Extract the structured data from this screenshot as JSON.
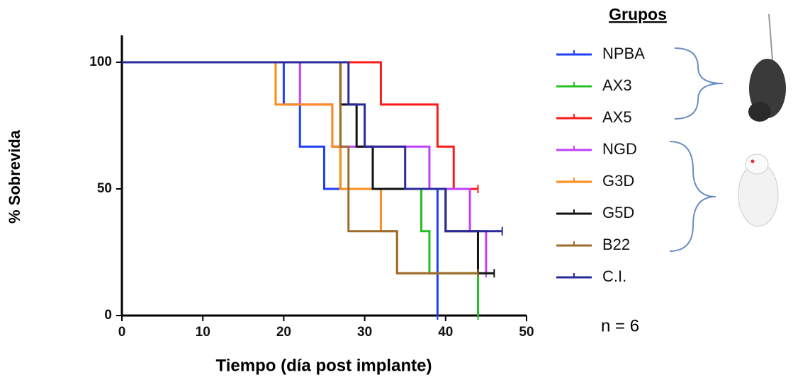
{
  "chart_data": {
    "type": "step",
    "ylabel": "% Sobrevida",
    "xlabel": "Tiempo (día post implante)",
    "legend_title": "Grupos",
    "annotation": "n = 6",
    "xlim": [
      0,
      50
    ],
    "xticks": [
      0,
      10,
      20,
      30,
      40,
      50
    ],
    "ylim": [
      0,
      100
    ],
    "yticks": [
      0,
      50,
      100
    ],
    "series": [
      {
        "name": "NPBA",
        "color": "#1f3fff",
        "x": [
          0,
          20,
          22,
          25,
          39
        ],
        "values": [
          100,
          83.3,
          66.7,
          50,
          0
        ]
      },
      {
        "name": "AX3",
        "color": "#22c022",
        "x": [
          0,
          27,
          37,
          38,
          44
        ],
        "values": [
          100,
          50,
          33.3,
          16.7,
          0
        ]
      },
      {
        "name": "AX5",
        "color": "#ff1a1a",
        "x": [
          0,
          32,
          39,
          41,
          44
        ],
        "values": [
          100,
          83.3,
          66.7,
          50,
          50
        ]
      },
      {
        "name": "NGD",
        "color": "#c040ff",
        "x": [
          0,
          22,
          26,
          38,
          43,
          45
        ],
        "values": [
          100,
          83.3,
          66.7,
          50,
          33.3,
          16.7
        ]
      },
      {
        "name": "G3D",
        "color": "#ff8c1a",
        "x": [
          0,
          19,
          26,
          27,
          32,
          34,
          44
        ],
        "values": [
          100,
          83.3,
          66.7,
          50,
          33.3,
          16.7,
          16.7
        ]
      },
      {
        "name": "G5D",
        "color": "#111111",
        "x": [
          0,
          27,
          29,
          31,
          40,
          44,
          46
        ],
        "values": [
          100,
          83.3,
          66.7,
          50,
          33.3,
          16.7,
          16.7
        ]
      },
      {
        "name": "B22",
        "color": "#9c6b2e",
        "x": [
          0,
          27,
          28,
          34,
          44
        ],
        "values": [
          100,
          66.7,
          33.3,
          16.7,
          16.7
        ]
      },
      {
        "name": "C.I.",
        "color": "#2a2a9a",
        "x": [
          0,
          28,
          30,
          35,
          40,
          47
        ],
        "values": [
          100,
          83.3,
          66.7,
          50,
          33.3,
          33.3
        ]
      }
    ]
  }
}
